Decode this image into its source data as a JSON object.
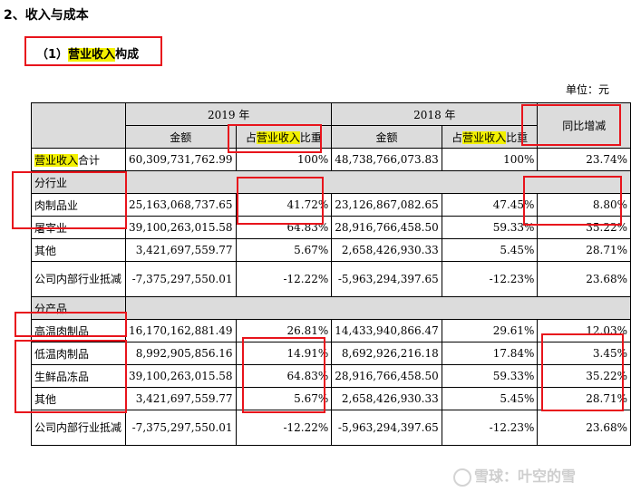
{
  "section_title": "2、收入与成本",
  "subsection": {
    "prefix": "（1）",
    "highlight": "营业收入",
    "suffix": "构成"
  },
  "unit_label": "单位：元",
  "headers": {
    "year_2019": "2019 年",
    "year_2018": "2018 年",
    "yoy": "同比增减",
    "amount": "金额",
    "share_prefix": "占",
    "share_highlight": "营业收入",
    "share_suffix": "比重"
  },
  "total_row": {
    "label_highlight": "营业收入",
    "label_suffix": "合计",
    "amt2019": "60,309,731,762.99",
    "pct2019": "100%",
    "amt2018": "48,738,766,073.83",
    "pct2018": "100%",
    "yoy": "23.74%"
  },
  "section_industry": "分行业",
  "industry_rows": [
    {
      "label": "肉制品业",
      "amt2019": "25,163,068,737.65",
      "pct2019": "41.72%",
      "amt2018": "23,126,867,082.65",
      "pct2018": "47.45%",
      "yoy": "8.80%"
    },
    {
      "label": "屠宰业",
      "amt2019": "39,100,263,015.58",
      "pct2019": "64.83%",
      "amt2018": "28,916,766,458.50",
      "pct2018": "59.33%",
      "yoy": "35.22%"
    },
    {
      "label": "其他",
      "amt2019": "3,421,697,559.77",
      "pct2019": "5.67%",
      "amt2018": "2,658,426,930.33",
      "pct2018": "5.45%",
      "yoy": "28.71%"
    },
    {
      "label": "公司内部行业抵减",
      "amt2019": "-7,375,297,550.01",
      "pct2019": "-12.22%",
      "amt2018": "-5,963,294,397.65",
      "pct2018": "-12.23%",
      "yoy": "23.68%"
    }
  ],
  "section_product": "分产品",
  "product_rows": [
    {
      "label": "高温肉制品",
      "amt2019": "16,170,162,881.49",
      "pct2019": "26.81%",
      "amt2018": "14,433,940,866.47",
      "pct2018": "29.61%",
      "yoy": "12.03%"
    },
    {
      "label": "低温肉制品",
      "amt2019": "8,992,905,856.16",
      "pct2019": "14.91%",
      "amt2018": "8,692,926,216.18",
      "pct2018": "17.84%",
      "yoy": "3.45%"
    },
    {
      "label": "生鲜品冻品",
      "amt2019": "39,100,263,015.58",
      "pct2019": "64.83%",
      "amt2018": "28,916,766,458.50",
      "pct2018": "59.33%",
      "yoy": "35.22%"
    },
    {
      "label": "其他",
      "amt2019": "3,421,697,559.77",
      "pct2019": "5.67%",
      "amt2018": "2,658,426,930.33",
      "pct2018": "5.45%",
      "yoy": "28.71%"
    },
    {
      "label": "公司内部行业抵减",
      "amt2019": "-7,375,297,550.01",
      "pct2019": "-12.22%",
      "amt2018": "-5,963,294,397.65",
      "pct2018": "-12.23%",
      "yoy": "23.68%"
    }
  ],
  "watermark": "雪球：叶空的雪",
  "annotation_color": "#e8141c",
  "highlight_color": "#f2f000"
}
